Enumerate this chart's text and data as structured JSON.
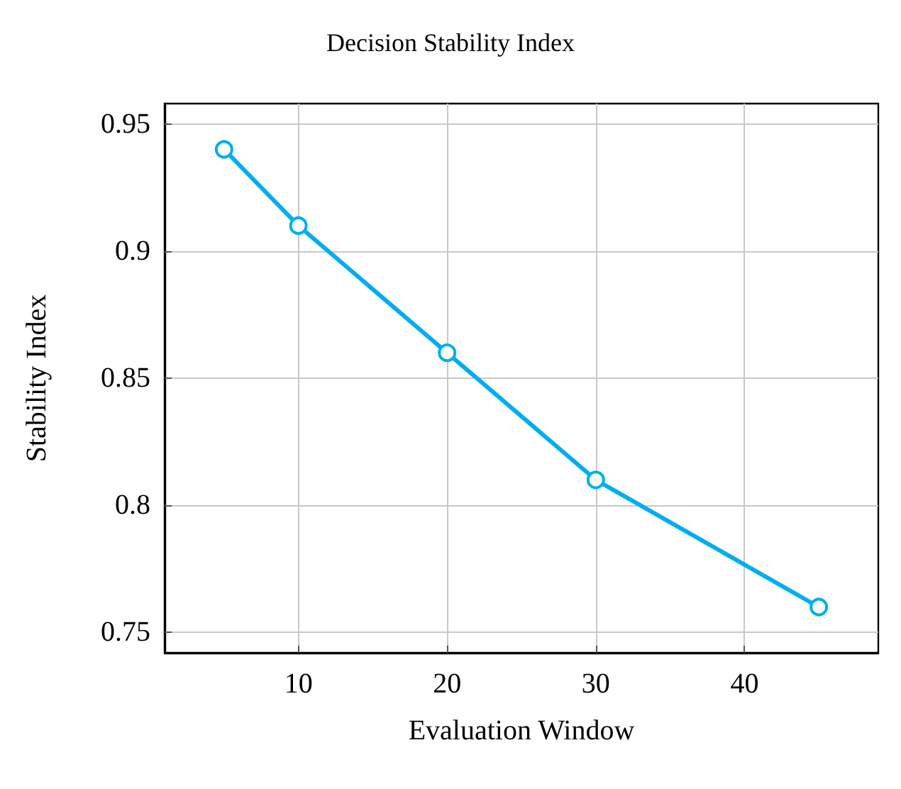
{
  "chart_data": {
    "type": "line",
    "title": "Decision Stability Index",
    "xlabel": "Evaluation Window",
    "ylabel": "Stability Index",
    "x": [
      5,
      10,
      20,
      30,
      45
    ],
    "series": [
      {
        "color": "#00aeef",
        "values": [
          0.94,
          0.91,
          0.86,
          0.81,
          0.76
        ]
      }
    ],
    "xlim": [
      1,
      49
    ],
    "xticks": [
      10,
      20,
      30,
      40
    ],
    "ylim": [
      0.742,
      0.958
    ],
    "yticks": [
      0.75,
      0.8,
      0.85,
      0.9,
      0.95
    ],
    "grid": true,
    "marker": "circle",
    "line_style": "solid"
  }
}
